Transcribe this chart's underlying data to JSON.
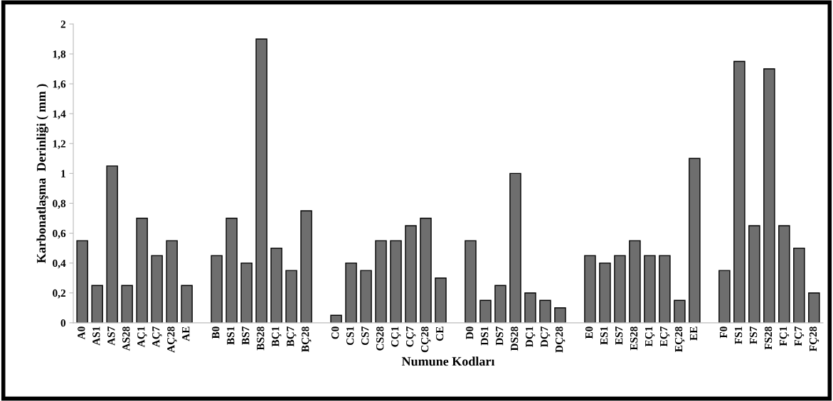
{
  "chart_data": {
    "type": "bar",
    "xlabel": "Numune Kodları",
    "ylabel": "Karbonatlaşma  Derinliği ( mm )",
    "categories": [
      "A0",
      "AS1",
      "AS7",
      "AS28",
      "AÇ1",
      "AÇ7",
      "AÇ28",
      "AE",
      null,
      "B0",
      "BS1",
      "BS7",
      "BS28",
      "BÇ1",
      "BÇ7",
      "BÇ28",
      null,
      "C0",
      "CS1",
      "CS7",
      "CS28",
      "CÇ1",
      "CÇ7",
      "CÇ28",
      "CE",
      null,
      "D0",
      "DS1",
      "DS7",
      "DS28",
      "DÇ1",
      "DÇ7",
      "DÇ28",
      null,
      "E0",
      "ES1",
      "ES7",
      "ES28",
      "EÇ1",
      "EÇ7",
      "EÇ28",
      "EE",
      null,
      "F0",
      "FS1",
      "FS7",
      "FS28",
      "FÇ1",
      "FÇ7",
      "FÇ28"
    ],
    "values": [
      0.55,
      0.25,
      1.05,
      0.25,
      0.7,
      0.45,
      0.55,
      0.25,
      null,
      0.45,
      0.7,
      0.4,
      1.9,
      0.5,
      0.35,
      0.75,
      null,
      0.05,
      0.4,
      0.35,
      0.55,
      0.55,
      0.65,
      0.7,
      0.3,
      null,
      0.55,
      0.15,
      0.25,
      1.0,
      0.2,
      0.15,
      0.1,
      null,
      0.45,
      0.4,
      0.45,
      0.55,
      0.45,
      0.45,
      0.15,
      1.1,
      null,
      0.35,
      1.75,
      0.65,
      1.7,
      0.65,
      0.5,
      0.2
    ],
    "color": "#6e6e6e",
    "ylim": [
      0,
      2
    ],
    "yticks": [
      0,
      {
        "value": 0.2,
        "label": "0,2"
      },
      {
        "value": 0.4,
        "label": "0,4"
      },
      {
        "value": 0.6,
        "label": "0,6"
      },
      {
        "value": 0.8,
        "label": "0,8"
      },
      1,
      {
        "value": 1.2,
        "label": "1,2"
      },
      {
        "value": 1.4,
        "label": "1,4"
      },
      {
        "value": 1.6,
        "label": "1,6"
      },
      {
        "value": 1.8,
        "label": "1,8"
      },
      2
    ],
    "grid": false,
    "legend": false
  }
}
